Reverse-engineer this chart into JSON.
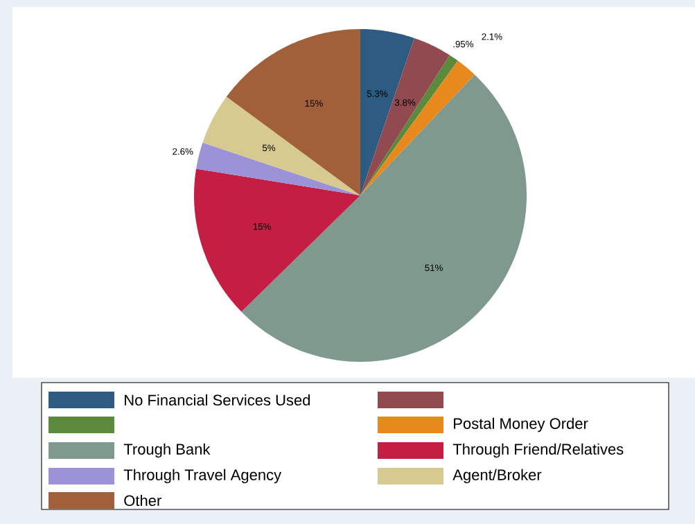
{
  "chart_data": {
    "type": "pie",
    "categories": [
      "No Financial Services Used",
      null,
      null,
      "Postal Money Order",
      "Trough Bank",
      "Through Friend/Relatives",
      "Through Travel Agency",
      "Agent/Broker",
      "Other"
    ],
    "values": [
      5.3,
      3.8,
      0.95,
      2.1,
      51,
      15,
      2.6,
      5,
      15
    ],
    "value_labels": [
      "5.3%",
      "3.8%",
      ".95%",
      "2.1%",
      "51%",
      "15%",
      "2.6%",
      "5%",
      "15%"
    ],
    "colors": [
      "#2e5b82",
      "#924a51",
      "#5b8a3c",
      "#e8891d",
      "#7f998f",
      "#c41e45",
      "#9b92d8",
      "#d6ca91",
      "#a2603a"
    ],
    "legend": "bottom"
  }
}
